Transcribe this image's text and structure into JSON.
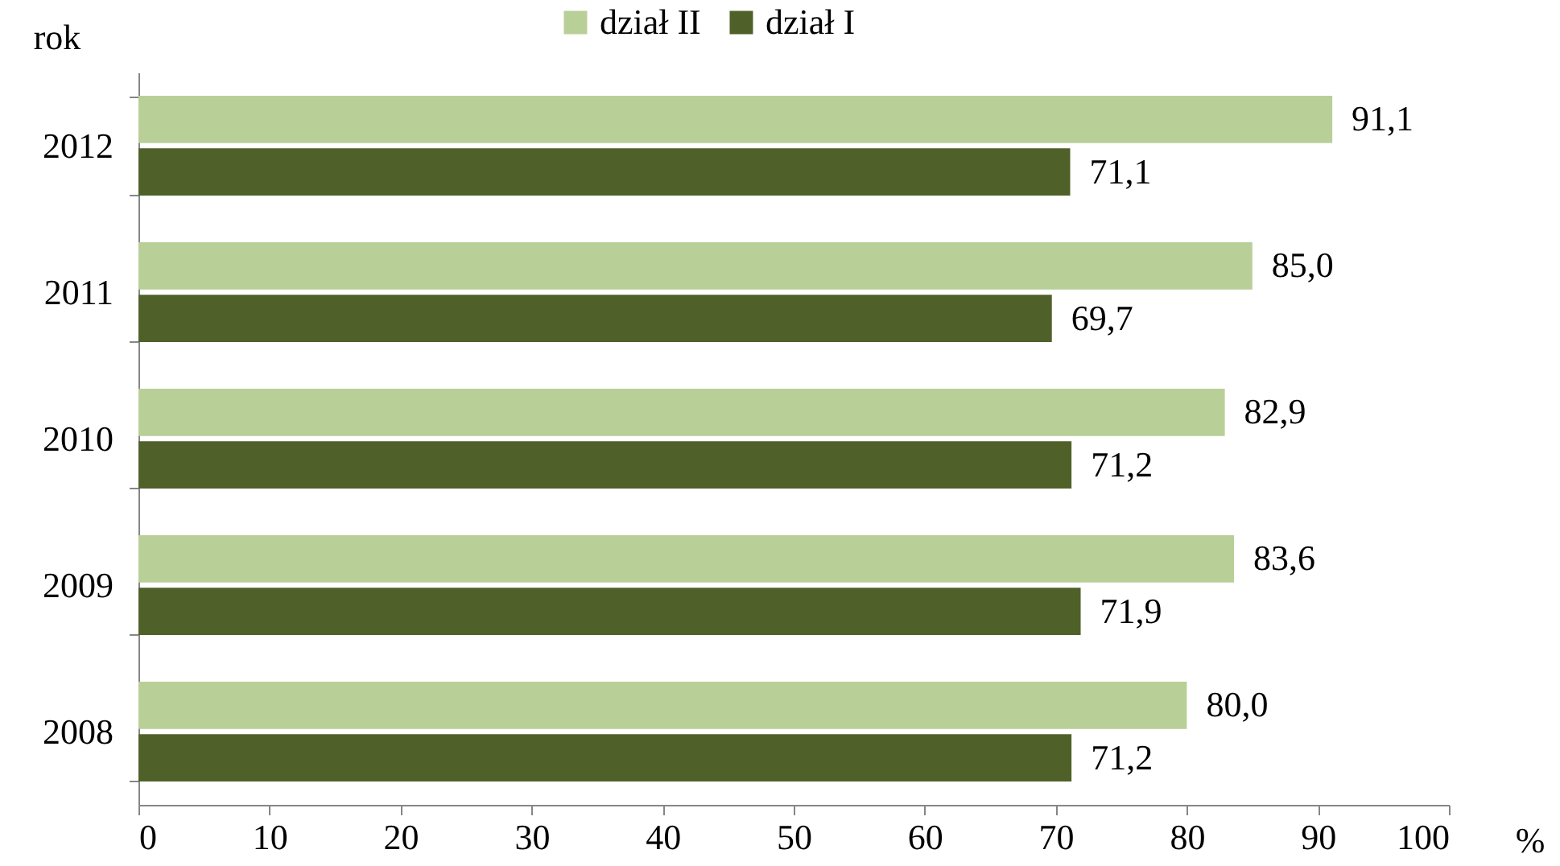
{
  "chart_data": {
    "type": "bar",
    "orientation": "horizontal",
    "ylabel": "rok",
    "xlabel": "%",
    "categories": [
      "2012",
      "2011",
      "2010",
      "2009",
      "2008"
    ],
    "series": [
      {
        "name": "dział II",
        "color": "#b9cf98",
        "values": [
          91.1,
          85.0,
          82.9,
          83.6,
          80.0
        ],
        "value_labels": [
          "91,1",
          "85,0",
          "82,9",
          "83,6",
          "80,0"
        ]
      },
      {
        "name": "dział I",
        "color": "#4f6129",
        "values": [
          71.1,
          69.7,
          71.2,
          71.9,
          71.2
        ],
        "value_labels": [
          "71,1",
          "69,7",
          "71,2",
          "71,9",
          "71,2"
        ]
      }
    ],
    "xlim": [
      0,
      100
    ],
    "xticks": [
      0,
      10,
      20,
      30,
      40,
      50,
      60,
      70,
      80,
      90,
      100
    ],
    "legend": "top",
    "grid": false
  }
}
